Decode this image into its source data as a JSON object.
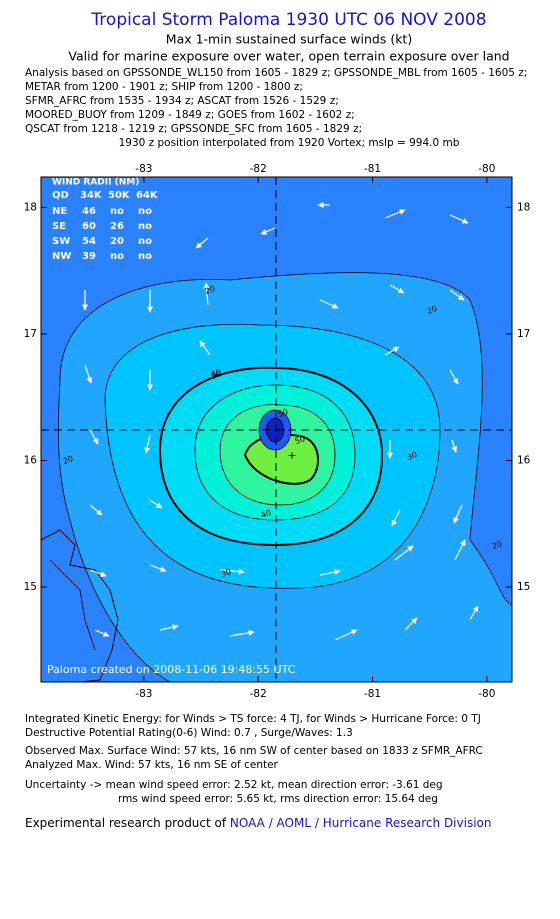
{
  "header": {
    "title": "Tropical Storm Paloma 1930 UTC 06 NOV 2008",
    "subtitle": "Max 1-min sustained surface winds (kt)",
    "validity": "Valid for marine exposure over water, open terrain exposure over land",
    "sources": [
      "Analysis based on  GPSSONDE_WL150 from 1605 - 1829 z;  GPSSONDE_MBL from 1605 - 1605 z;",
      "METAR from 1200 - 1901 z;  SHIP from 1200 - 1800 z;",
      "SFMR_AFRC from 1535 - 1934 z;  ASCAT from 1526 - 1529 z;",
      "MOORED_BUOY from 1209 - 1849 z;  GOES from 1602 - 1602 z;",
      "QSCAT from 1218 - 1219 z;  GPSSONDE_SFC from 1605 - 1829 z;"
    ],
    "position": "1930 z position interpolated from 1920 Vortex; mslp = 994.0 mb"
  },
  "map": {
    "xlim": [
      -83.9,
      -79.78
    ],
    "ylim": [
      14.25,
      18.24
    ],
    "xticks": [
      -83,
      -82,
      -81,
      -80
    ],
    "yticks": [
      15,
      16,
      17,
      18
    ],
    "contour_labels": [
      20,
      20,
      20,
      20,
      30,
      30,
      30,
      40,
      40,
      50,
      50
    ],
    "footer": "Paloma   created on 2008-11-06 19:48:55 UTC",
    "wind_radii": {
      "title": "WIND RADII (NM)",
      "columns": [
        "QD",
        "34K",
        "50K",
        "64K"
      ],
      "rows": [
        [
          "NE",
          46,
          "no",
          "no"
        ],
        [
          "SE",
          60,
          26,
          "no"
        ],
        [
          "SW",
          54,
          20,
          "no"
        ],
        [
          "NW",
          39,
          "no",
          "no"
        ]
      ]
    }
  },
  "footer": {
    "lines": [
      "Integrated Kinetic Energy:  for Winds > TS force: 4 TJ,  for Winds > Hurricane Force: 0 TJ",
      "Destructive Potential Rating(0-6)   Wind: 0.7 , Surge/Waves: 1.3",
      "Observed Max. Surface Wind: 57 kts, 16 nm SW of center based on 1833 z SFMR_AFRC",
      "Analyzed Max. Wind: 57 kts, 16 nm SE of center",
      "Uncertainty -> mean wind speed error: 2.52 kt,   mean direction error:  -3.61 deg",
      "rms wind speed error: 5.65 kt,   rms direction error: 15.64 deg"
    ],
    "credit": "Experimental research product of ",
    "link": "NOAA / AOML / Hurricane Research Division"
  }
}
